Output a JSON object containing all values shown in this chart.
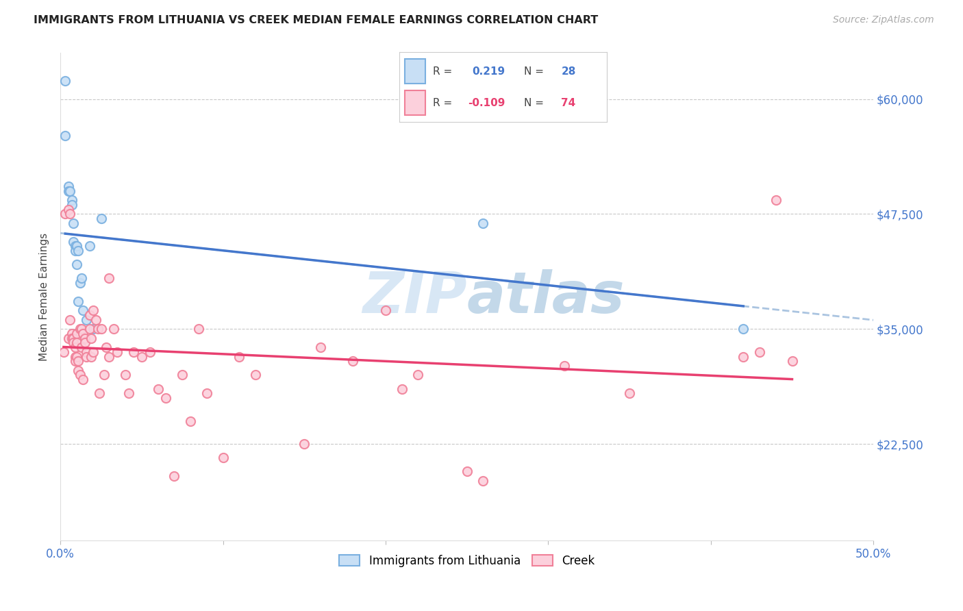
{
  "title": "IMMIGRANTS FROM LITHUANIA VS CREEK MEDIAN FEMALE EARNINGS CORRELATION CHART",
  "source": "Source: ZipAtlas.com",
  "ylabel": "Median Female Earnings",
  "xlim": [
    0.0,
    0.5
  ],
  "ylim": [
    12000,
    65000
  ],
  "yticks": [
    22500,
    35000,
    47500,
    60000
  ],
  "ytick_labels": [
    "$22,500",
    "$35,000",
    "$47,500",
    "$60,000"
  ],
  "background_color": "#ffffff",
  "grid_color": "#c8c8c8",
  "blue_color": "#7ab0e0",
  "pink_color": "#f08098",
  "blue_fill": "#c8dff5",
  "pink_fill": "#fcd0dc",
  "blue_line_color": "#4477cc",
  "pink_line_color": "#e84070",
  "blue_dashed_color": "#aac4e0",
  "axis_color": "#4477cc",
  "title_color": "#222222",
  "source_color": "#aaaaaa",
  "watermark_color": "#d0e4f5",
  "blue_x": [
    0.003,
    0.003,
    0.005,
    0.005,
    0.006,
    0.007,
    0.007,
    0.008,
    0.008,
    0.009,
    0.009,
    0.01,
    0.01,
    0.011,
    0.011,
    0.012,
    0.013,
    0.014,
    0.016,
    0.018,
    0.02,
    0.025,
    0.26,
    0.42
  ],
  "blue_y": [
    62000,
    56000,
    50500,
    50000,
    50000,
    49000,
    48500,
    46500,
    44500,
    44000,
    43500,
    44000,
    42000,
    43500,
    38000,
    40000,
    40500,
    37000,
    36000,
    44000,
    35000,
    47000,
    46500,
    35000
  ],
  "pink_x": [
    0.002,
    0.003,
    0.005,
    0.005,
    0.006,
    0.006,
    0.007,
    0.007,
    0.008,
    0.008,
    0.009,
    0.009,
    0.009,
    0.01,
    0.01,
    0.01,
    0.011,
    0.011,
    0.012,
    0.012,
    0.013,
    0.013,
    0.014,
    0.014,
    0.015,
    0.015,
    0.016,
    0.016,
    0.018,
    0.018,
    0.019,
    0.019,
    0.02,
    0.02,
    0.022,
    0.023,
    0.024,
    0.025,
    0.027,
    0.028,
    0.03,
    0.03,
    0.033,
    0.035,
    0.04,
    0.042,
    0.045,
    0.05,
    0.055,
    0.06,
    0.065,
    0.07,
    0.075,
    0.08,
    0.085,
    0.09,
    0.1,
    0.11,
    0.12,
    0.15,
    0.16,
    0.18,
    0.2,
    0.21,
    0.22,
    0.25,
    0.26,
    0.31,
    0.35,
    0.42,
    0.43,
    0.44,
    0.45
  ],
  "pink_y": [
    32500,
    47500,
    48000,
    34000,
    47500,
    36000,
    34500,
    34000,
    34000,
    33500,
    33000,
    32000,
    31500,
    34500,
    33500,
    32000,
    31500,
    30500,
    35000,
    30000,
    35000,
    33000,
    34500,
    29500,
    34000,
    33500,
    32500,
    32000,
    36500,
    35000,
    34000,
    32000,
    37000,
    32500,
    36000,
    35000,
    28000,
    35000,
    30000,
    33000,
    40500,
    32000,
    35000,
    32500,
    30000,
    28000,
    32500,
    32000,
    32500,
    28500,
    27500,
    19000,
    30000,
    25000,
    35000,
    28000,
    21000,
    32000,
    30000,
    22500,
    33000,
    31500,
    37000,
    28500,
    30000,
    19500,
    18500,
    31000,
    28000,
    32000,
    32500,
    49000,
    31500
  ]
}
